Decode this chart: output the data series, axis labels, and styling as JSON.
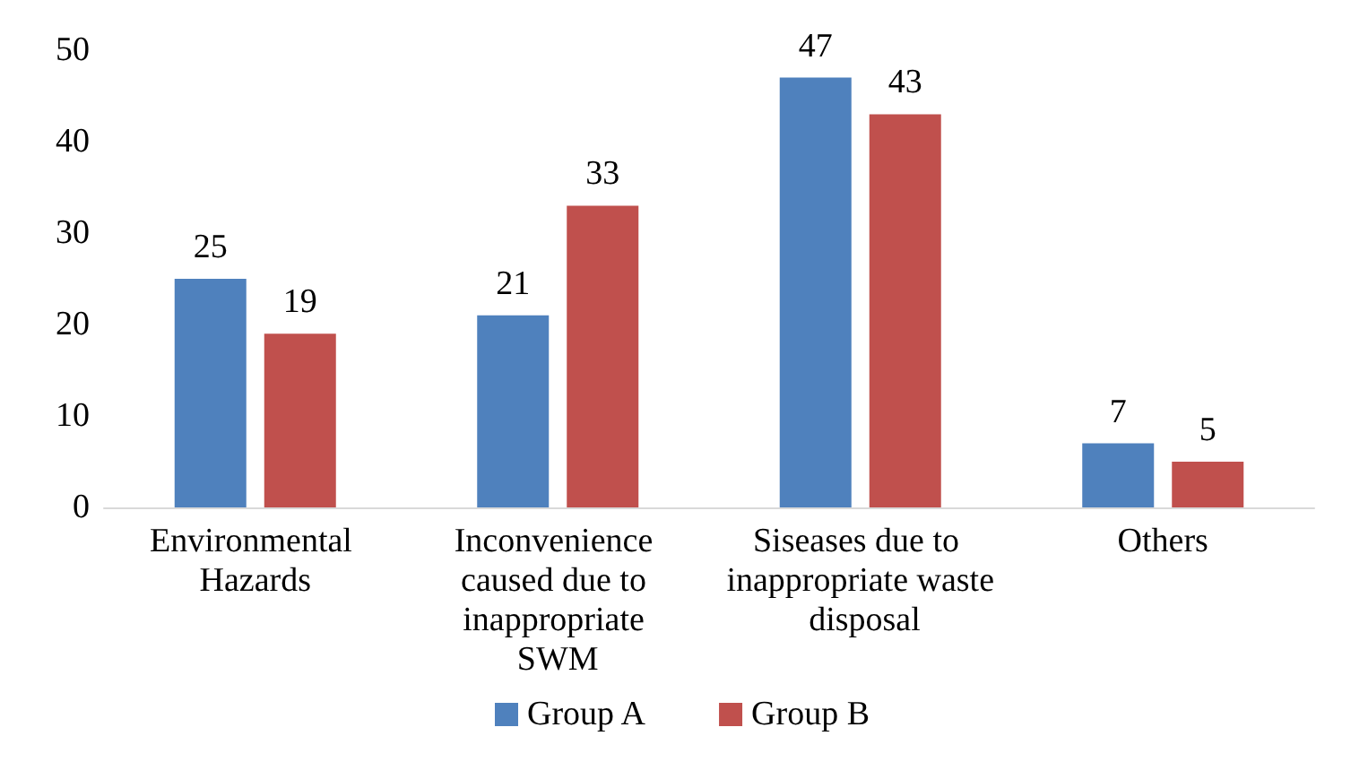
{
  "chart_data": {
    "type": "bar",
    "categories": [
      "Environmental Hazards",
      "Inconvenience caused due to inappropriate SWM",
      "Siseases due to inappropriate waste disposal",
      "Others"
    ],
    "series": [
      {
        "name": "Group A",
        "color": "#4f81bd",
        "values": [
          25,
          21,
          47,
          7
        ]
      },
      {
        "name": "Group B",
        "color": "#c0504d",
        "values": [
          19,
          33,
          43,
          5
        ]
      }
    ],
    "ylim": [
      0,
      50
    ],
    "yticks": [
      0,
      10,
      20,
      30,
      40,
      50
    ],
    "grid": false,
    "legend": "bottom",
    "data_labels": true
  }
}
